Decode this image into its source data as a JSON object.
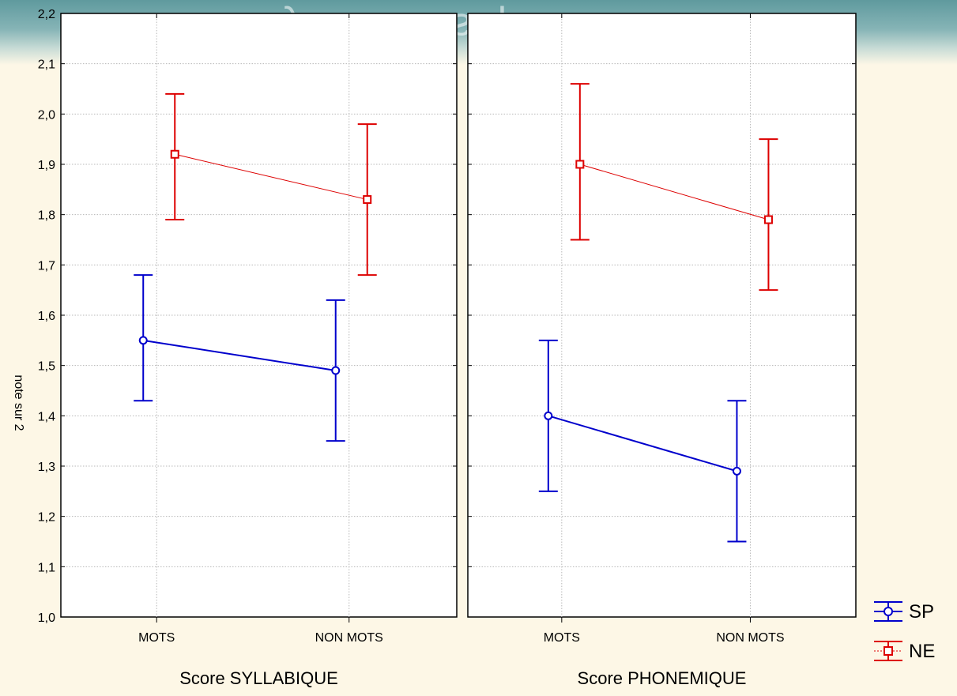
{
  "banner": {
    "title": "syllabes vs. phonemes"
  },
  "chart_data": {
    "type": "line",
    "ylabel": "note sur 2",
    "ylim": [
      1.0,
      2.2
    ],
    "yticks": [
      "1,0",
      "1,1",
      "1,2",
      "1,3",
      "1,4",
      "1,5",
      "1,6",
      "1,7",
      "1,8",
      "1,9",
      "2,0",
      "2,1",
      "2,2"
    ],
    "grid": true,
    "legend_position": "bottom-right",
    "legend": [
      {
        "name": "SP",
        "color": "#0000cc",
        "marker": "circle"
      },
      {
        "name": "NE",
        "color": "#dd0000",
        "marker": "square"
      }
    ],
    "panels": [
      {
        "title": "Score SYLLABIQUE",
        "categories": [
          "MOTS",
          "NON MOTS"
        ],
        "series": [
          {
            "name": "SP",
            "values": [
              1.55,
              1.49
            ],
            "err_low": [
              1.43,
              1.35
            ],
            "err_high": [
              1.68,
              1.63
            ]
          },
          {
            "name": "NE",
            "values": [
              1.92,
              1.83
            ],
            "err_low": [
              1.79,
              1.68
            ],
            "err_high": [
              2.04,
              1.98
            ]
          }
        ]
      },
      {
        "title": "Score PHONEMIQUE",
        "categories": [
          "MOTS",
          "NON MOTS"
        ],
        "series": [
          {
            "name": "SP",
            "values": [
              1.4,
              1.29
            ],
            "err_low": [
              1.25,
              1.15
            ],
            "err_high": [
              1.55,
              1.43
            ]
          },
          {
            "name": "NE",
            "values": [
              1.9,
              1.79
            ],
            "err_low": [
              1.75,
              1.65
            ],
            "err_high": [
              2.06,
              1.95
            ]
          }
        ]
      }
    ]
  }
}
